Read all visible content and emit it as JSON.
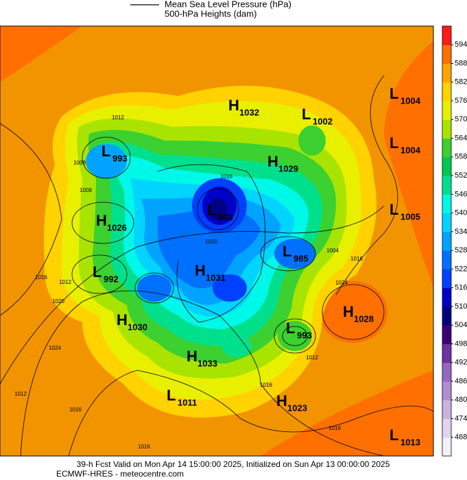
{
  "legend": {
    "line_label": "Mean Sea Level Pressure (hPa)",
    "fill_label": "500-hPa Heights (dam)"
  },
  "colorbar": {
    "levels": [
      468,
      474,
      480,
      486,
      492,
      498,
      504,
      510,
      516,
      522,
      528,
      534,
      540,
      546,
      552,
      558,
      564,
      570,
      576,
      582,
      588,
      594
    ],
    "colors": [
      "#f4f0f8",
      "#e2d2ee",
      "#c9b2e0",
      "#b08ed0",
      "#9468be",
      "#7030a0",
      "#3a0078",
      "#000080",
      "#0000c8",
      "#0040ff",
      "#0070ff",
      "#00a4ff",
      "#00d4ff",
      "#00f8e8",
      "#00e08c",
      "#00c850",
      "#3cd030",
      "#a8e400",
      "#e8f000",
      "#ffd200",
      "#ffa400",
      "#ff7000",
      "#ff1a1a"
    ]
  },
  "centers": [
    {
      "symbol": "L",
      "value": 1004
    },
    {
      "symbol": "H",
      "value": 1032
    },
    {
      "symbol": "L",
      "value": 1002
    },
    {
      "symbol": "L",
      "value": 1004
    },
    {
      "symbol": "L",
      "value": 993
    },
    {
      "symbol": "H",
      "value": 1029
    },
    {
      "symbol": "H",
      "value": 1026
    },
    {
      "symbol": "L",
      "value": 988
    },
    {
      "symbol": "L",
      "value": 1005
    },
    {
      "symbol": "L",
      "value": 985
    },
    {
      "symbol": "L",
      "value": 992
    },
    {
      "symbol": "H",
      "value": 1031
    },
    {
      "symbol": "H",
      "value": 1028
    },
    {
      "symbol": "H",
      "value": 1030
    },
    {
      "symbol": "L",
      "value": 993
    },
    {
      "symbol": "H",
      "value": 1033
    },
    {
      "symbol": "L",
      "value": 1011
    },
    {
      "symbol": "H",
      "value": 1023
    },
    {
      "symbol": "L",
      "value": 1013
    }
  ],
  "isobar_labels": [
    1012,
    1008,
    1008,
    1016,
    1012,
    1020,
    1024,
    1012,
    1016,
    1016,
    1016,
    1016,
    1020,
    1016,
    1024,
    1016,
    1004,
    1012
  ],
  "footer": {
    "line1": "39-h Fcst Valid on Mon Apr 14 15:00:00 2025, Initialized on Sun Apr 13 00:00:00 2025",
    "line2": "ECMWF-HRES  - meteocentre.com"
  }
}
